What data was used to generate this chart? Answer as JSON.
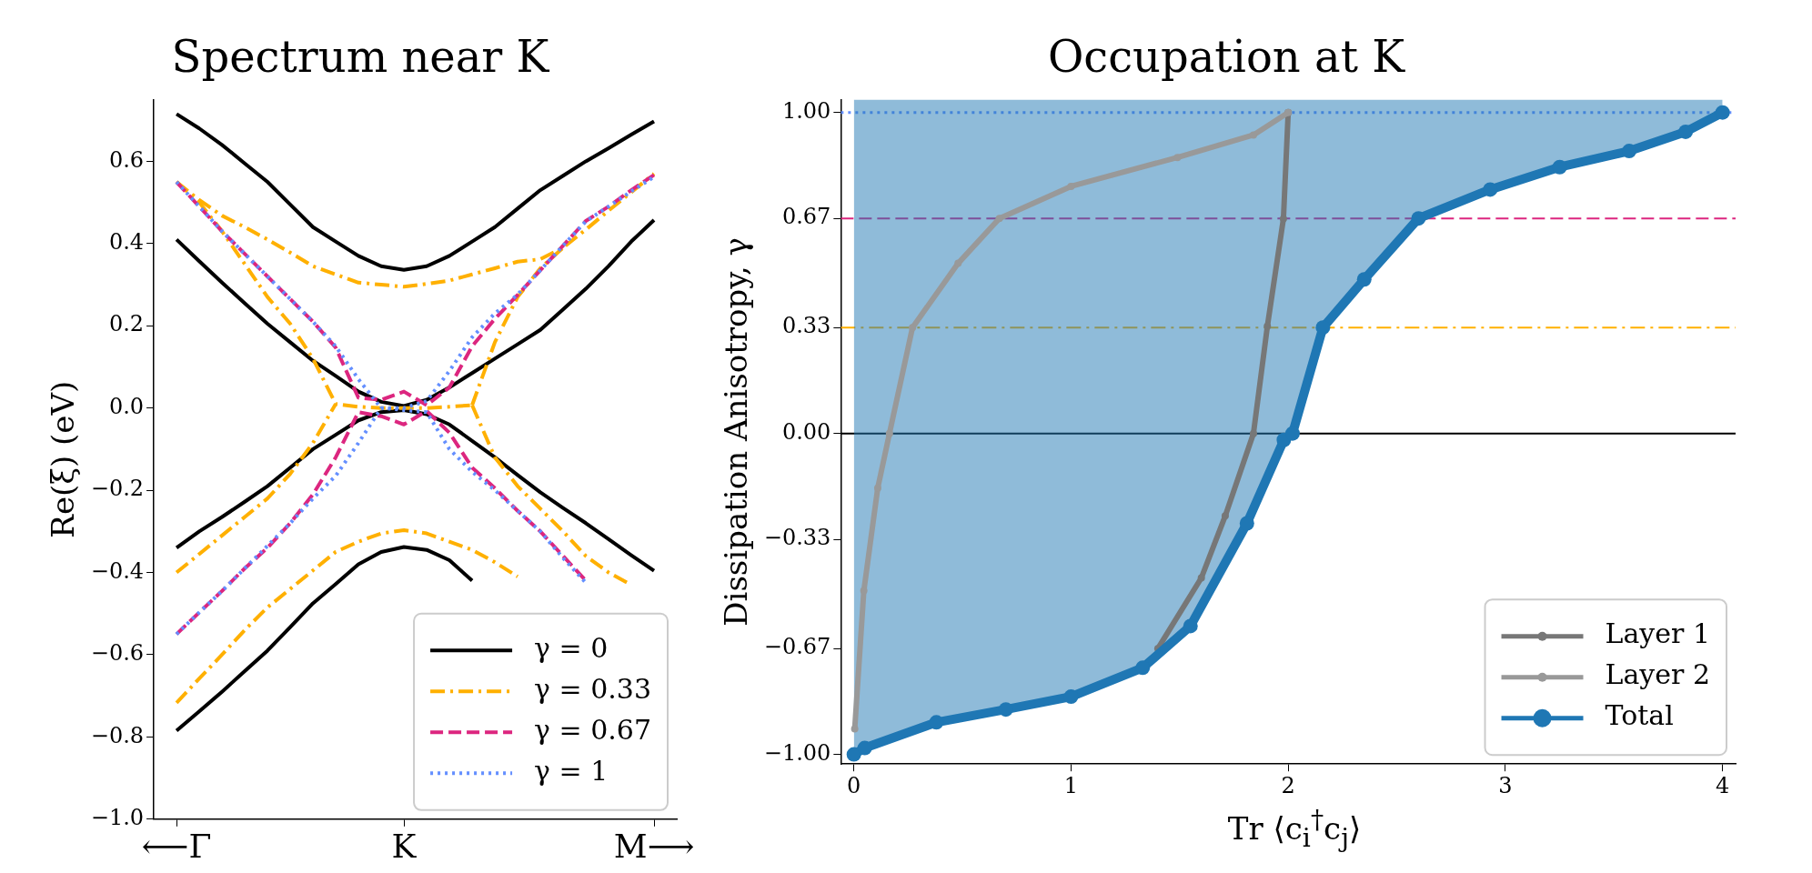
{
  "chart_data": [
    {
      "type": "line",
      "title": "Spectrum near K",
      "ylabel": "Re(ξ) (eV)",
      "categories": [
        "⟵Γ",
        null,
        null,
        null,
        null,
        null,
        null,
        null,
        null,
        null,
        "K",
        null,
        null,
        null,
        null,
        null,
        null,
        null,
        null,
        null,
        null,
        "M⟶"
      ],
      "ylim": [
        -1.0,
        0.75
      ],
      "yticks": [
        {
          "value": -1,
          "label": "−1.0"
        },
        {
          "value": -0.8,
          "label": "−0.8"
        },
        {
          "value": -0.6,
          "label": "−0.6"
        },
        {
          "value": -0.4,
          "label": "−0.4"
        },
        {
          "value": -0.2,
          "label": "−0.2"
        },
        {
          "value": 0,
          "label": "0.0"
        },
        {
          "value": 0.2,
          "label": "0.2"
        },
        {
          "value": 0.4,
          "label": "0.4"
        },
        {
          "value": 0.6,
          "label": "0.6"
        }
      ],
      "grid": false,
      "legend": "bottom right",
      "series": [
        {
          "name": "γ = 0",
          "color": "#000000",
          "line_style": "solid",
          "values": [
            0.715,
            0.68,
            0.64,
            0.595,
            0.55,
            0.495,
            0.44,
            0.405,
            0.37,
            0.345,
            0.336,
            0.345,
            0.37,
            0.405,
            0.44,
            0.485,
            0.53,
            0.565,
            0.6,
            0.632,
            0.665,
            0.697
          ]
        },
        {
          "color": "#000000",
          "line_style": "solid",
          "values": [
            0.41,
            0.357,
            0.305,
            0.255,
            0.205,
            0.16,
            0.115,
            0.078,
            0.04,
            0.015,
            0.005,
            0.02,
            0.05,
            0.085,
            0.12,
            0.155,
            0.19,
            0.24,
            0.29,
            0.345,
            0.405,
            0.457
          ]
        },
        {
          "color": "#000000",
          "line_style": "solid",
          "values": [
            -0.34,
            -0.3,
            -0.265,
            -0.228,
            -0.19,
            -0.145,
            -0.1,
            -0.065,
            -0.03,
            -0.01,
            -0.005,
            -0.015,
            -0.04,
            -0.08,
            -0.12,
            -0.163,
            -0.205,
            -0.243,
            -0.28,
            -0.319,
            -0.358,
            -0.396
          ]
        },
        {
          "color": "#000000",
          "line_style": "solid",
          "values": [
            -0.785,
            -0.738,
            -0.69,
            -0.64,
            -0.59,
            -0.533,
            -0.475,
            -0.428,
            -0.38,
            -0.35,
            -0.338,
            -0.345,
            -0.37,
            -0.42,
            null,
            null,
            null,
            null,
            null,
            null,
            null,
            null
          ]
        },
        {
          "name": "γ = 0.33",
          "color": "#ffb000",
          "line_style": "dashdot",
          "values": [
            0.55,
            0.506,
            0.468,
            0.44,
            0.41,
            0.378,
            0.345,
            0.325,
            0.305,
            0.3,
            0.295,
            0.302,
            0.31,
            0.325,
            0.34,
            0.356,
            0.362,
            0.39,
            0.434,
            0.48,
            0.525,
            0.57
          ]
        },
        {
          "color": "#ffb000",
          "line_style": "dashdot",
          "values": [
            0.55,
            0.5,
            0.43,
            0.35,
            0.27,
            0.205,
            0.12,
            0.01,
            0.003,
            0,
            0,
            0,
            0.003,
            0.007,
            null,
            null,
            null,
            null,
            null,
            null,
            null,
            null
          ]
        },
        {
          "color": "#ffb000",
          "line_style": "dashdot",
          "values": [
            -0.4,
            -0.355,
            -0.31,
            -0.265,
            -0.22,
            -0.16,
            -0.085,
            0.01,
            null,
            null,
            null,
            null,
            null,
            null,
            null,
            null,
            null,
            null,
            null,
            null,
            null,
            null
          ]
        },
        {
          "color": "#ffb000",
          "line_style": "dashdot",
          "values": [
            null,
            null,
            null,
            null,
            null,
            null,
            null,
            null,
            null,
            null,
            null,
            null,
            null,
            0.007,
            0.16,
            0.27,
            0.34,
            0.39,
            null,
            null,
            null,
            null
          ]
        },
        {
          "color": "#ffb000",
          "line_style": "dashdot",
          "values": [
            null,
            null,
            null,
            null,
            null,
            null,
            null,
            null,
            null,
            null,
            null,
            null,
            null,
            0.007,
            -0.12,
            -0.19,
            -0.245,
            -0.3,
            -0.36,
            -0.4,
            -0.43,
            null
          ]
        },
        {
          "color": "#ffb000",
          "line_style": "dashdot",
          "values": [
            -0.717,
            -0.658,
            -0.6,
            -0.54,
            -0.485,
            -0.44,
            -0.395,
            -0.35,
            -0.325,
            -0.305,
            -0.297,
            -0.305,
            -0.325,
            -0.345,
            -0.375,
            -0.41,
            null,
            null,
            null,
            null,
            null,
            null
          ]
        },
        {
          "name": "γ = 0.67",
          "color": "#dc267f",
          "line_style": "dashed",
          "values": [
            0.55,
            0.49,
            0.43,
            0.375,
            0.32,
            0.265,
            0.21,
            0.147,
            0.025,
            0.02,
            0.04,
            0.007,
            0.05,
            0.15,
            0.217,
            0.275,
            0.335,
            0.395,
            0.455,
            0.49,
            0.53,
            0.567
          ]
        },
        {
          "color": "#dc267f",
          "line_style": "dashed",
          "values": [
            -0.55,
            -0.497,
            -0.445,
            -0.39,
            -0.34,
            -0.28,
            -0.21,
            -0.12,
            -0.01,
            -0.02,
            -0.04,
            -0.007,
            -0.06,
            -0.145,
            -0.195,
            -0.25,
            -0.3,
            -0.36,
            -0.42,
            null,
            null,
            null
          ]
        },
        {
          "name": "γ = 1",
          "color": "#648fff",
          "line_style": "dotted",
          "values": [
            0.55,
            0.49,
            0.43,
            0.375,
            0.32,
            0.265,
            0.21,
            0.15,
            0.07,
            0,
            0,
            0.017,
            0.09,
            0.172,
            0.23,
            0.276,
            0.335,
            0.395,
            0.454,
            0.49,
            0.527,
            0.562
          ]
        },
        {
          "color": "#648fff",
          "line_style": "dotted",
          "values": [
            -0.55,
            -0.497,
            -0.445,
            -0.39,
            -0.335,
            -0.28,
            -0.22,
            -0.165,
            -0.085,
            0,
            -0.005,
            -0.01,
            -0.1,
            -0.155,
            -0.2,
            -0.25,
            -0.3,
            -0.365,
            -0.425,
            null,
            null,
            null
          ]
        }
      ]
    },
    {
      "type": "line",
      "title": "Occupation at K",
      "xlabel": "Tr ⟨c$_{i}$$^{†}$c$_{j}$⟩",
      "ylabel": "Dissipation Anisotropy, γ",
      "xlim": [
        -0.06,
        4.06
      ],
      "xticks": [
        0,
        1,
        2,
        3,
        4
      ],
      "ylim": [
        -1.03,
        1.04
      ],
      "yticks": [
        {
          "value": -1,
          "label": "−1.00"
        },
        {
          "value": -0.67,
          "label": "−0.67"
        },
        {
          "value": -0.33,
          "label": "−0.33"
        },
        {
          "value": 0,
          "label": "0.00"
        },
        {
          "value": 0.33,
          "label": "0.33"
        },
        {
          "value": 0.67,
          "label": "0.67"
        },
        {
          "value": 1,
          "label": "1.00"
        }
      ],
      "grid": false,
      "legend": "bottom right",
      "ref_lines": [
        {
          "axis": "y",
          "value": 1,
          "color": "#648fff",
          "line_style": "dotted"
        },
        {
          "axis": "y",
          "value": 0.67,
          "color": "#dc267f",
          "line_style": "dashed"
        },
        {
          "axis": "y",
          "value": 0.33,
          "color": "#ffb000",
          "line_style": "dashdot"
        },
        {
          "axis": "y",
          "value": 0,
          "color": "#000000",
          "line_style": "solid"
        }
      ],
      "series": [
        {
          "name": "Layer 1",
          "color": "#777777",
          "marker": "circle",
          "x": [
            1.4,
            1.6,
            1.71,
            1.84,
            1.904,
            1.978,
            2.0
          ],
          "values": [
            -0.67,
            -0.45,
            -0.257,
            0,
            0.334,
            0.669,
            1.0
          ]
        },
        {
          "name": "Layer 2",
          "color": "#999999",
          "marker": "circle",
          "x": [
            0.004,
            0.046,
            0.11,
            0.164,
            0.27,
            0.48,
            0.67,
            1.0,
            1.49,
            1.84,
            2.0
          ],
          "values": [
            -0.92,
            -0.49,
            -0.17,
            0,
            0.33,
            0.53,
            0.67,
            0.77,
            0.86,
            0.93,
            1.0
          ]
        },
        {
          "name": "Total",
          "color": "#1f77b4",
          "marker": "circle",
          "x": [
            0,
            0.05,
            0.38,
            0.7,
            1.0,
            1.33,
            1.55,
            1.81,
            1.98,
            2.02,
            2.16,
            2.35,
            2.6,
            2.93,
            3.25,
            3.57,
            3.83,
            4.0
          ],
          "values": [
            -1,
            -0.98,
            -0.9,
            -0.86,
            -0.82,
            -0.73,
            -0.6,
            -0.28,
            -0.02,
            0,
            0.33,
            0.48,
            0.67,
            0.76,
            0.83,
            0.88,
            0.94,
            1.0
          ],
          "lower": [
            -1,
            -0.98,
            -0.9,
            -0.86,
            -0.82,
            -0.73,
            -0.6,
            -0.28,
            -0.02,
            0,
            0.33,
            0.48,
            0.67,
            0.76,
            0.83,
            0.88,
            0.94,
            1.0
          ],
          "upper": [
            1.04,
            1.04,
            1.04,
            1.04,
            1.04,
            1.04,
            1.04,
            1.04,
            1.04,
            1.04,
            1.04,
            1.04,
            1.04,
            1.04,
            1.04,
            1.04,
            1.04,
            1.04
          ]
        }
      ]
    }
  ]
}
